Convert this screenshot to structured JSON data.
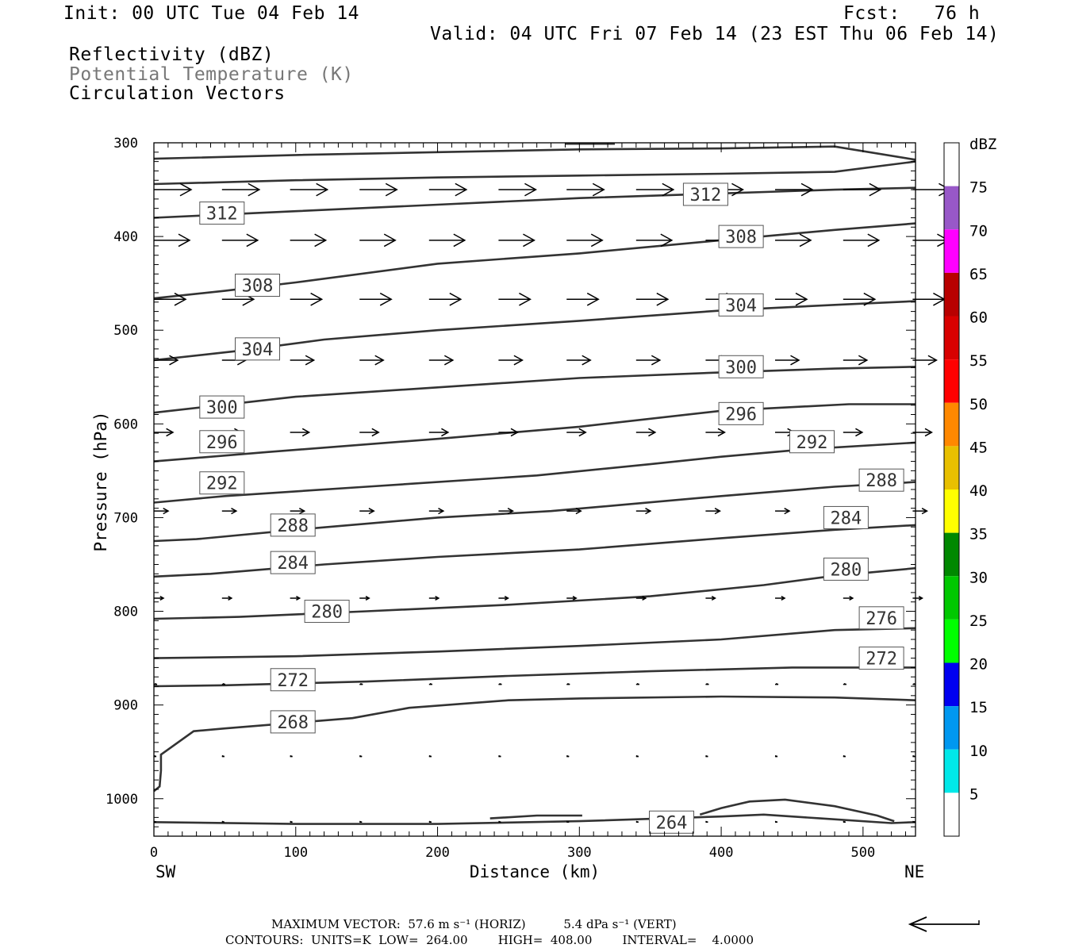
{
  "header": {
    "init": "Init: 00 UTC Tue 04 Feb 14",
    "fcst": "Fcst:   76 h",
    "valid": "Valid: 04 UTC Fri 07 Feb 14 (23 EST Thu 06 Feb 14)",
    "field1": "Reflectivity (dBZ)",
    "field2": "Potential Temperature (K)",
    "field3": "Circulation Vectors"
  },
  "footer": {
    "vector_line": "MAXIMUM VECTOR:  57.6 m s⁻¹ (HORIZ)          5.4 dPa s⁻¹ (VERT)",
    "contour_line": "CONTOURS:  UNITS=K  LOW=  264.00        HIGH=  408.00        INTERVAL=    4.0000"
  },
  "chart_data": {
    "type": "contour_cross_section",
    "xlabel": "Distance (km)",
    "ylabel": "Pressure (hPa)",
    "xlim": [
      0,
      537
    ],
    "ylim": [
      1040,
      300
    ],
    "x_ticks": [
      0,
      100,
      200,
      300,
      400,
      500
    ],
    "y_ticks": [
      300,
      400,
      500,
      600,
      700,
      800,
      900,
      1000
    ],
    "left_end_label": "SW",
    "right_end_label": "NE",
    "colorbar": {
      "unit": "dBZ",
      "levels": [
        5,
        10,
        15,
        20,
        25,
        30,
        35,
        40,
        45,
        50,
        55,
        60,
        65,
        70,
        75
      ],
      "colors": [
        "#ffffff",
        "#00e8e8",
        "#0098f0",
        "#0000f0",
        "#00ff00",
        "#00c800",
        "#008800",
        "#ffff00",
        "#e8c000",
        "#ff8800",
        "#ff0000",
        "#d80000",
        "#b80000",
        "#ff00ff",
        "#9858c8",
        "#ffffff"
      ]
    },
    "contour_color": "#333333",
    "contours": [
      {
        "label": "264",
        "label_pos": [
          365,
          1025
        ],
        "points": [
          [
            0,
            1025
          ],
          [
            100,
            1027
          ],
          [
            200,
            1027
          ],
          [
            300,
            1024
          ],
          [
            400,
            1019
          ],
          [
            430,
            1017
          ],
          [
            470,
            1021
          ],
          [
            520,
            1026
          ],
          [
            537,
            1025
          ]
        ]
      },
      {
        "label": "264",
        "label_pos": null,
        "points": [
          [
            237,
            1021
          ],
          [
            270,
            1018
          ],
          [
            302,
            1018
          ]
        ]
      },
      {
        "label": "264",
        "label_pos": null,
        "points": [
          [
            385,
            1017
          ],
          [
            400,
            1010
          ],
          [
            420,
            1003
          ],
          [
            445,
            1001
          ],
          [
            480,
            1008
          ],
          [
            510,
            1018
          ],
          [
            522,
            1024
          ]
        ]
      },
      {
        "label": "268",
        "label_pos": [
          98,
          918
        ],
        "points": [
          [
            0,
            992
          ],
          [
            4,
            987
          ],
          [
            5,
            970
          ],
          [
            5,
            953
          ],
          [
            28,
            928
          ],
          [
            50,
            925
          ],
          [
            140,
            914
          ],
          [
            180,
            903
          ],
          [
            250,
            895
          ],
          [
            300,
            893
          ],
          [
            400,
            891
          ],
          [
            480,
            892
          ],
          [
            537,
            895
          ]
        ]
      },
      {
        "label": "272",
        "label_pos": [
          98,
          873
        ],
        "points": [
          [
            0,
            880
          ],
          [
            50,
            879
          ],
          [
            150,
            875
          ],
          [
            250,
            869
          ],
          [
            350,
            864
          ],
          [
            450,
            860
          ],
          [
            537,
            860
          ]
        ]
      },
      {
        "label": "272",
        "label_pos": [
          513,
          850
        ],
        "points": null
      },
      {
        "label": "276",
        "label_pos": [
          513,
          807
        ],
        "points": [
          [
            0,
            850
          ],
          [
            100,
            848
          ],
          [
            200,
            843
          ],
          [
            300,
            837
          ],
          [
            400,
            830
          ],
          [
            480,
            820
          ],
          [
            537,
            818
          ]
        ]
      },
      {
        "label": "280",
        "label_pos": [
          122,
          800
        ],
        "points": [
          [
            0,
            808
          ],
          [
            60,
            806
          ],
          [
            150,
            800
          ],
          [
            250,
            793
          ],
          [
            350,
            784
          ],
          [
            430,
            772
          ],
          [
            480,
            762
          ],
          [
            537,
            754
          ]
        ]
      },
      {
        "label": "280",
        "label_pos": [
          488,
          755
        ],
        "points": null
      },
      {
        "label": "284",
        "label_pos": [
          98,
          748
        ],
        "points": [
          [
            0,
            763
          ],
          [
            40,
            760
          ],
          [
            120,
            750
          ],
          [
            200,
            742
          ],
          [
            300,
            734
          ],
          [
            400,
            722
          ],
          [
            480,
            713
          ],
          [
            537,
            708
          ]
        ]
      },
      {
        "label": "284",
        "label_pos": [
          488,
          700
        ],
        "points": null
      },
      {
        "label": "288",
        "label_pos": [
          98,
          708
        ],
        "points": [
          [
            0,
            725
          ],
          [
            30,
            723
          ],
          [
            100,
            713
          ],
          [
            200,
            700
          ],
          [
            280,
            693
          ],
          [
            400,
            677
          ],
          [
            480,
            667
          ],
          [
            537,
            662
          ]
        ]
      },
      {
        "label": "288",
        "label_pos": [
          513,
          660
        ],
        "points": null
      },
      {
        "label": "292",
        "label_pos": [
          48,
          663
        ],
        "points": [
          [
            0,
            684
          ],
          [
            50,
            677
          ],
          [
            150,
            667
          ],
          [
            270,
            655
          ],
          [
            350,
            643
          ],
          [
            400,
            635
          ],
          [
            460,
            627
          ],
          [
            537,
            620
          ]
        ]
      },
      {
        "label": "292",
        "label_pos": [
          464,
          619
        ],
        "points": null
      },
      {
        "label": "296",
        "label_pos": [
          48,
          619
        ],
        "points": [
          [
            0,
            640
          ],
          [
            80,
            630
          ],
          [
            200,
            616
          ],
          [
            300,
            603
          ],
          [
            400,
            586
          ],
          [
            490,
            579
          ],
          [
            537,
            579
          ]
        ]
      },
      {
        "label": "296",
        "label_pos": [
          414,
          589
        ],
        "points": null
      },
      {
        "label": "300",
        "label_pos": [
          48,
          582
        ],
        "points": [
          [
            0,
            588
          ],
          [
            100,
            571
          ],
          [
            200,
            561
          ],
          [
            300,
            551
          ],
          [
            400,
            545
          ],
          [
            480,
            541
          ],
          [
            537,
            539
          ]
        ]
      },
      {
        "label": "300",
        "label_pos": [
          414,
          539
        ],
        "points": null
      },
      {
        "label": "304",
        "label_pos": [
          73,
          520
        ],
        "points": [
          [
            0,
            532
          ],
          [
            60,
            522
          ],
          [
            120,
            510
          ],
          [
            200,
            500
          ],
          [
            300,
            490
          ],
          [
            400,
            479
          ],
          [
            480,
            473
          ],
          [
            537,
            469
          ]
        ]
      },
      {
        "label": "304",
        "label_pos": [
          414,
          473
        ],
        "points": null
      },
      {
        "label": "308",
        "label_pos": [
          73,
          452
        ],
        "points": [
          [
            0,
            466
          ],
          [
            50,
            458
          ],
          [
            100,
            449
          ],
          [
            200,
            429
          ],
          [
            300,
            418
          ],
          [
            400,
            404
          ],
          [
            480,
            393
          ],
          [
            537,
            386
          ]
        ]
      },
      {
        "label": "308",
        "label_pos": [
          414,
          400
        ],
        "points": null
      },
      {
        "label": "312",
        "label_pos": [
          48,
          375
        ],
        "points": [
          [
            0,
            380
          ],
          [
            100,
            373
          ],
          [
            200,
            366
          ],
          [
            300,
            359
          ],
          [
            400,
            354
          ],
          [
            480,
            350
          ],
          [
            537,
            348
          ]
        ]
      },
      {
        "label": "312",
        "label_pos": [
          389,
          355
        ],
        "points": null
      },
      {
        "label": "",
        "label_pos": null,
        "points": [
          [
            0,
            344
          ],
          [
            100,
            340
          ],
          [
            200,
            337
          ],
          [
            300,
            335
          ],
          [
            400,
            333
          ],
          [
            480,
            331
          ],
          [
            537,
            320
          ]
        ]
      },
      {
        "label": "",
        "label_pos": null,
        "points": [
          [
            0,
            317
          ],
          [
            100,
            313
          ],
          [
            200,
            310
          ],
          [
            300,
            307
          ],
          [
            400,
            306
          ],
          [
            480,
            304
          ],
          [
            537,
            318
          ]
        ]
      },
      {
        "label": "",
        "label_pos": null,
        "points": [
          [
            290,
            301
          ],
          [
            325,
            301
          ]
        ]
      }
    ],
    "vectors_note": "circulation vectors (m s-1 horiz, dPa s-1 vert)",
    "vectors": [
      {
        "p": 350,
        "len": [
          47,
          47,
          47,
          47,
          47,
          47,
          47,
          47,
          47,
          47,
          47,
          47
        ]
      },
      {
        "p": 404,
        "len": [
          45,
          45,
          45,
          45,
          45,
          45,
          45,
          45,
          45,
          45,
          45,
          45
        ]
      },
      {
        "p": 467,
        "len": [
          40,
          40,
          40,
          40,
          40,
          40,
          40,
          40,
          40,
          40,
          40,
          40
        ]
      },
      {
        "p": 532,
        "len": [
          30,
          30,
          30,
          30,
          30,
          30,
          30,
          30,
          30,
          30,
          30,
          30
        ]
      },
      {
        "p": 609,
        "len": [
          24,
          24,
          24,
          24,
          24,
          24,
          24,
          24,
          24,
          24,
          24,
          24
        ]
      },
      {
        "p": 693,
        "len": [
          18,
          18,
          18,
          18,
          18,
          18,
          18,
          18,
          18,
          18,
          18,
          18
        ]
      },
      {
        "p": 786,
        "len": [
          12,
          12,
          12,
          12,
          12,
          12,
          12,
          12,
          12,
          12,
          12,
          12
        ]
      },
      {
        "p": 878,
        "len": [
          4,
          4,
          4,
          4,
          4,
          4,
          4,
          4,
          4,
          4,
          4,
          4
        ]
      },
      {
        "p": 955,
        "len": [
          3,
          3,
          3,
          3,
          3,
          3,
          3,
          3,
          3,
          3,
          3,
          3
        ]
      },
      {
        "p": 1025,
        "len": [
          3,
          3,
          3,
          3,
          3,
          3,
          3,
          3,
          3,
          3,
          3,
          3
        ]
      }
    ],
    "vector_x": [
      0,
      48,
      96,
      145,
      194,
      243,
      291,
      340,
      389,
      438,
      486,
      535
    ],
    "legend_vector": "reference arrow"
  }
}
